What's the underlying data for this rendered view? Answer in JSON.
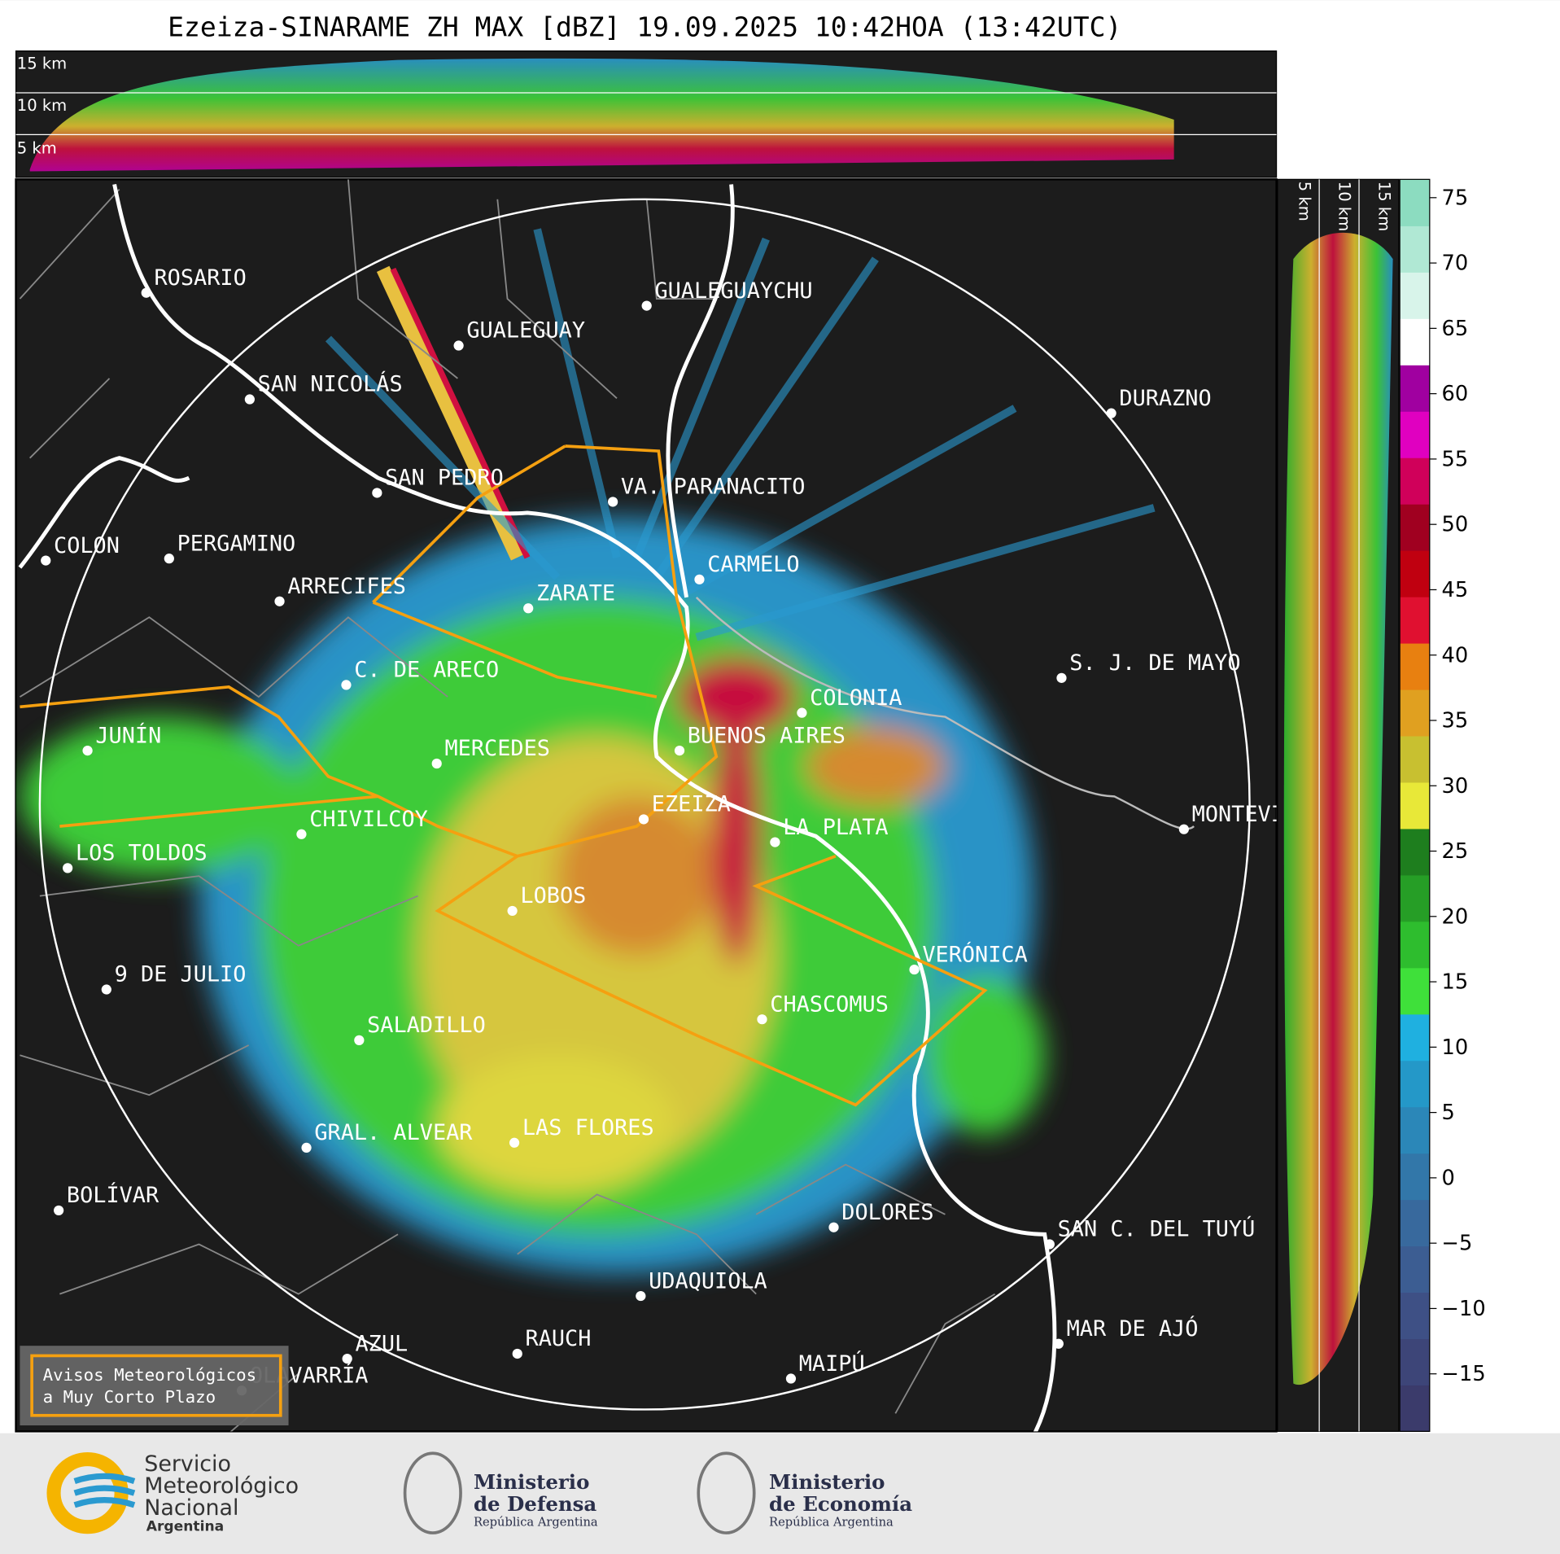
{
  "title": "Ezeiza-SINARAME ZH MAX [dBZ] 19.09.2025 10:42HOA (13:42UTC)",
  "cross_section_labels": [
    "15 km",
    "10 km",
    "5 km"
  ],
  "cities": [
    "ROSARIO",
    "GUALEGUAYCHU",
    "GUALEGUAY",
    "SAN NICOLÁS",
    "DURAZNO",
    "SAN PEDRO",
    "VA. PARANACITO",
    "COLON",
    "PERGAMINO",
    "CARMELO",
    "ARRECIFES",
    "ZARATE",
    "C. DE ARECO",
    "S. J. DE MAYO",
    "COLONIA",
    "BUENOS AIRES",
    "JUNÍN",
    "MERCEDES",
    "EZEIZA",
    "MONTEVIDEO",
    "LA PLATA",
    "CHIVILCOY",
    "LOS TOLDOS",
    "LOBOS",
    "VERÓNICA",
    "9 DE JULIO",
    "CHASCOMUS",
    "SALADILLO",
    "GRAL. ALVEAR",
    "LAS FLORES",
    "BOLÍVAR",
    "DOLORES",
    "SAN C. DEL TUYÚ",
    "UDAQUIOLA",
    "MAR DE AJÓ",
    "AZUL",
    "RAUCH",
    "OLAVARRÍA",
    "MAIPÚ"
  ],
  "colorbar": {
    "ylim": [
      -19.4,
      76.4
    ],
    "yticks": [
      {
        "value": -15,
        "label": "−15"
      },
      {
        "value": -10,
        "label": "−10"
      },
      {
        "value": -5,
        "label": "−5"
      },
      0,
      5,
      10,
      15,
      20,
      25,
      30,
      35,
      40,
      45,
      50,
      55,
      60,
      65,
      70,
      75
    ],
    "colors": [
      "#3b3b6b",
      "#3d4578",
      "#3e5085",
      "#3c5d92",
      "#38699d",
      "#3277a9",
      "#2b87b8",
      "#2498c8",
      "#1fb0e0",
      "#3fe03a",
      "#2ebd2e",
      "#269e26",
      "#1e7e1e",
      "#e8e838",
      "#c8c030",
      "#e0a020",
      "#e88010",
      "#e01030",
      "#c00010",
      "#a00020",
      "#d0005a",
      "#e000c0",
      "#a000a0",
      "#ffffff",
      "#d8f4ea",
      "#b0e8d4",
      "#8cdcc0"
    ]
  },
  "legend": [
    "Avisos Meteorológicos",
    "a Muy Corto Plazo"
  ],
  "logos": {
    "smn": [
      "Servicio",
      "Meteorológico",
      "Nacional",
      "Argentina"
    ],
    "defensa": [
      "Ministerio",
      "de Defensa",
      "República Argentina"
    ],
    "economia": [
      "Ministerio",
      "de Economía",
      "República Argentina"
    ]
  }
}
